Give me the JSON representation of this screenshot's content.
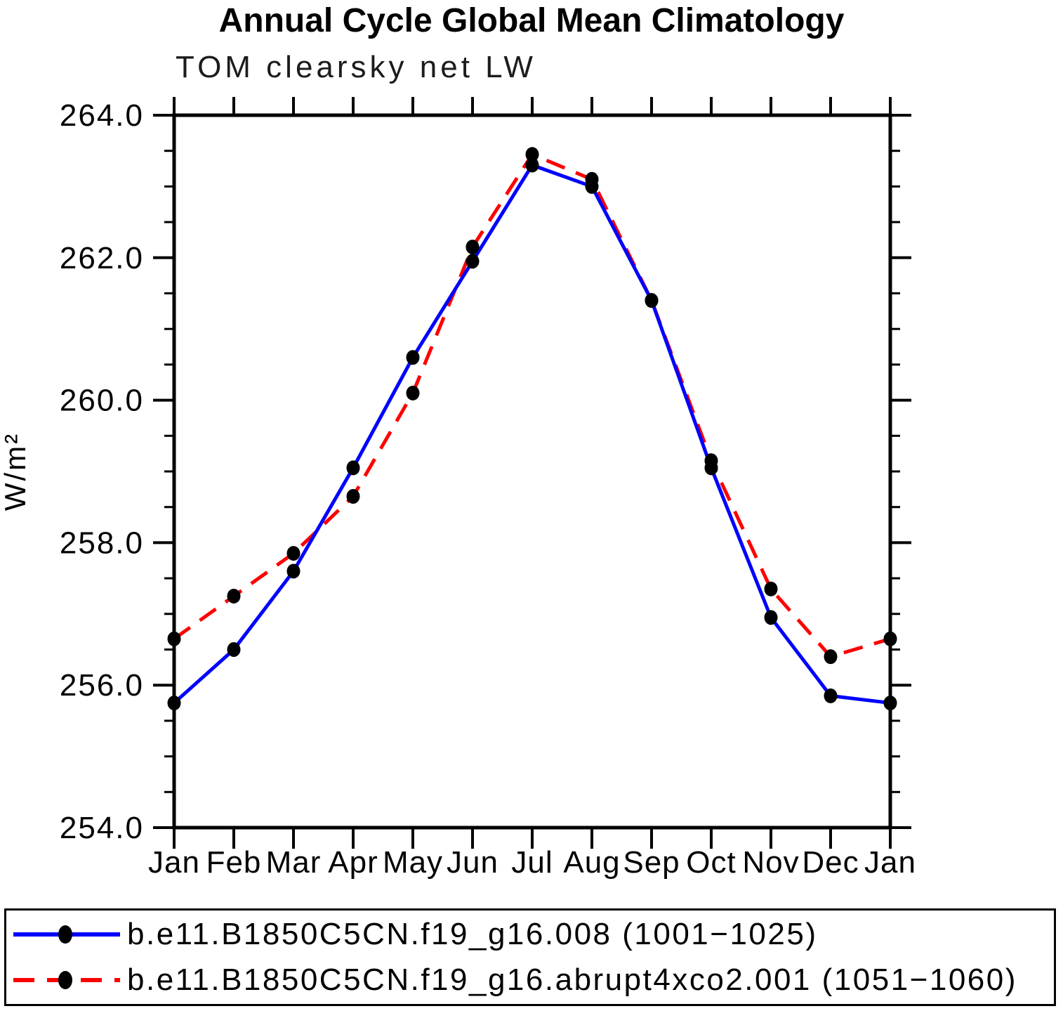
{
  "chart_data": {
    "type": "line",
    "title": "Annual Cycle Global Mean Climatology",
    "subtitle": "TOM clearsky net LW",
    "ylabel": "W/m²",
    "categories": [
      "Jan",
      "Feb",
      "Mar",
      "Apr",
      "May",
      "Jun",
      "Jul",
      "Aug",
      "Sep",
      "Oct",
      "Nov",
      "Dec",
      "Jan"
    ],
    "ylim": [
      254.0,
      264.0
    ],
    "ytick_major_interval": 2.0,
    "ytick_minor_interval": 0.5,
    "ytick_labels": [
      "254.0",
      "256.0",
      "258.0",
      "260.0",
      "262.0",
      "264.0"
    ],
    "grid": false,
    "legend_position": "bottom",
    "marker": {
      "shape": "filled-circle",
      "color": "#000000"
    },
    "axis_color": "#000000",
    "series": [
      {
        "name": "b.e11.B1850C5CN.f19_g16.008 (1001−1025)",
        "color": "#0000ff",
        "line_style": "solid",
        "values": [
          255.75,
          256.5,
          257.6,
          259.05,
          260.6,
          261.95,
          263.3,
          263.0,
          261.4,
          259.05,
          256.95,
          255.85,
          255.75
        ]
      },
      {
        "name": "b.e11.B1850C5CN.f19_g16.abrupt4xco2.001 (1051−1060)",
        "color": "#ff0000",
        "line_style": "dashed",
        "values": [
          256.65,
          257.25,
          257.85,
          258.65,
          260.1,
          262.15,
          263.45,
          263.1,
          261.4,
          259.15,
          257.35,
          256.4,
          256.65
        ]
      }
    ]
  }
}
